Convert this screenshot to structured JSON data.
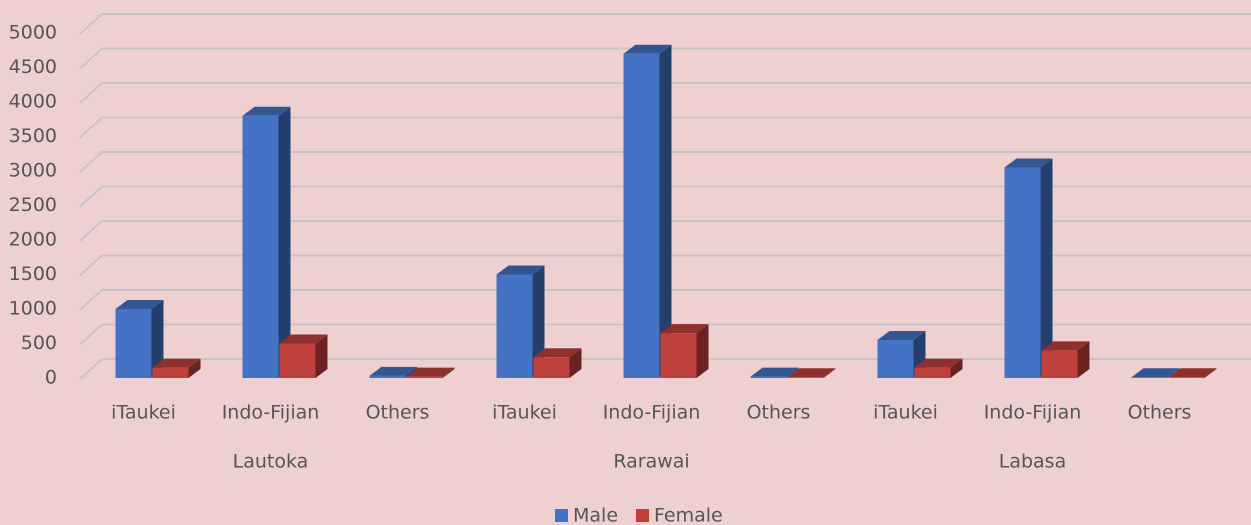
{
  "chart_data": {
    "type": "bar3d",
    "categories": [
      "iTaukei",
      "Indo-Fijian",
      "Others",
      "iTaukei",
      "Indo-Fijian",
      "Others",
      "iTaukei",
      "Indo-Fijian",
      "Others"
    ],
    "category_groups": [
      "Lautoka",
      "Rarawai",
      "Labasa"
    ],
    "series": [
      {
        "name": "Male",
        "color": "#4472c4",
        "values": [
          1000,
          3800,
          30,
          1500,
          4700,
          20,
          550,
          3050,
          10
        ]
      },
      {
        "name": "Female",
        "color": "#c0403b",
        "values": [
          150,
          500,
          20,
          300,
          650,
          10,
          150,
          400,
          10
        ]
      }
    ],
    "ylim": [
      0,
      5500
    ],
    "yticks": [
      0,
      500,
      1000,
      1500,
      2000,
      2500,
      3000,
      3500,
      4000,
      4500,
      5000
    ],
    "grid": true,
    "legend": "bottom"
  }
}
